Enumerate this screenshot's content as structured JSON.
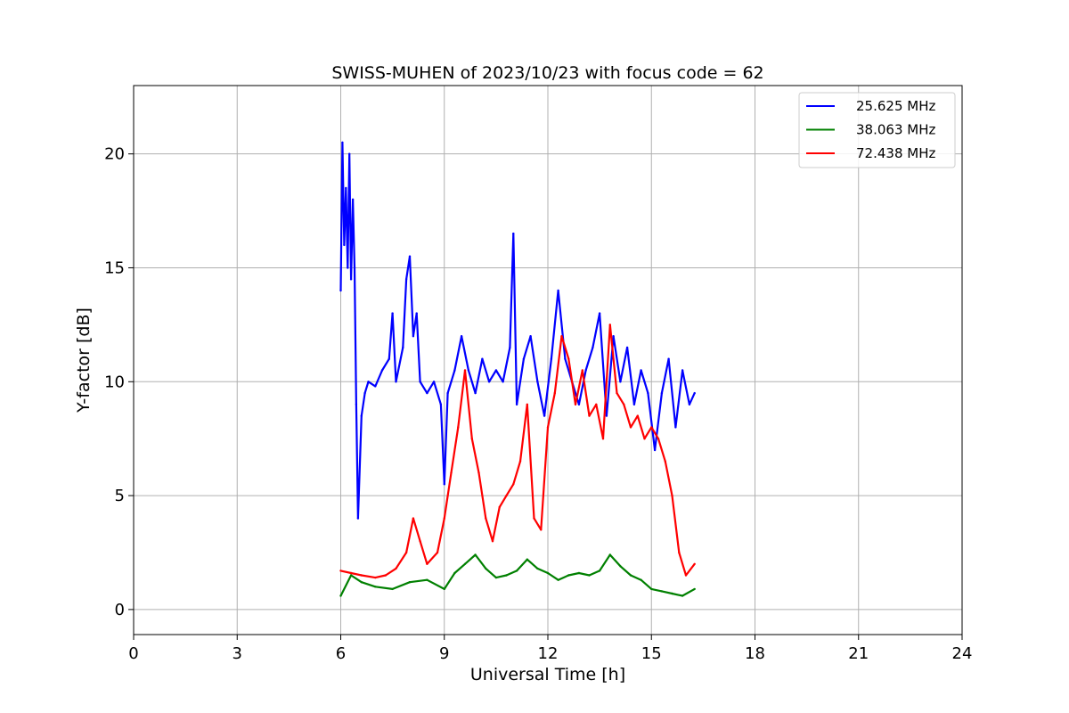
{
  "chart_data": {
    "type": "line",
    "title": "SWISS-MUHEN of 2023/10/23 with focus code = 62",
    "xlabel": "Universal Time [h]",
    "ylabel": "Y-factor [dB]",
    "xlim": [
      0,
      24
    ],
    "ylim": [
      -1.1,
      23.0
    ],
    "xticks": [
      0,
      3,
      6,
      9,
      12,
      15,
      18,
      21,
      24
    ],
    "yticks": [
      0,
      5,
      10,
      15,
      20
    ],
    "grid": true,
    "legend_position": "top-right",
    "series": [
      {
        "name": "25.625 MHz",
        "color": "#0000ff",
        "x": [
          6.0,
          6.05,
          6.1,
          6.15,
          6.2,
          6.25,
          6.3,
          6.35,
          6.4,
          6.45,
          6.5,
          6.6,
          6.7,
          6.8,
          7.0,
          7.2,
          7.4,
          7.5,
          7.6,
          7.8,
          7.9,
          8.0,
          8.1,
          8.2,
          8.3,
          8.5,
          8.7,
          8.9,
          9.0,
          9.1,
          9.3,
          9.5,
          9.7,
          9.9,
          10.1,
          10.3,
          10.5,
          10.7,
          10.9,
          11.0,
          11.1,
          11.3,
          11.5,
          11.7,
          11.9,
          12.1,
          12.3,
          12.5,
          12.7,
          12.9,
          13.1,
          13.3,
          13.5,
          13.7,
          13.9,
          14.1,
          14.3,
          14.5,
          14.7,
          14.9,
          15.1,
          15.3,
          15.5,
          15.7,
          15.9,
          16.1,
          16.25
        ],
        "y": [
          14.0,
          20.5,
          16.0,
          18.5,
          15.0,
          20.0,
          14.5,
          18.0,
          15.0,
          9.0,
          4.0,
          8.5,
          9.5,
          10.0,
          9.8,
          10.5,
          11.0,
          13.0,
          10.0,
          11.5,
          14.5,
          15.5,
          12.0,
          13.0,
          10.0,
          9.5,
          10.0,
          9.0,
          5.5,
          9.5,
          10.5,
          12.0,
          10.5,
          9.5,
          11.0,
          10.0,
          10.5,
          10.0,
          11.5,
          16.5,
          9.0,
          11.0,
          12.0,
          10.0,
          8.5,
          11.0,
          14.0,
          11.0,
          10.0,
          9.0,
          10.5,
          11.5,
          13.0,
          8.5,
          12.0,
          10.0,
          11.5,
          9.0,
          10.5,
          9.5,
          7.0,
          9.5,
          11.0,
          8.0,
          10.5,
          9.0,
          9.5
        ]
      },
      {
        "name": "38.063 MHz",
        "color": "#008000",
        "x": [
          6.0,
          6.3,
          6.6,
          7.0,
          7.5,
          8.0,
          8.5,
          9.0,
          9.3,
          9.6,
          9.9,
          10.2,
          10.5,
          10.8,
          11.1,
          11.4,
          11.7,
          12.0,
          12.3,
          12.6,
          12.9,
          13.2,
          13.5,
          13.8,
          14.1,
          14.4,
          14.7,
          15.0,
          15.3,
          15.6,
          15.9,
          16.25
        ],
        "y": [
          0.6,
          1.5,
          1.2,
          1.0,
          0.9,
          1.2,
          1.3,
          0.9,
          1.6,
          2.0,
          2.4,
          1.8,
          1.4,
          1.5,
          1.7,
          2.2,
          1.8,
          1.6,
          1.3,
          1.5,
          1.6,
          1.5,
          1.7,
          2.4,
          1.9,
          1.5,
          1.3,
          0.9,
          0.8,
          0.7,
          0.6,
          0.9
        ]
      },
      {
        "name": "72.438 MHz",
        "color": "#ff0000",
        "x": [
          6.0,
          6.3,
          6.6,
          7.0,
          7.3,
          7.6,
          7.9,
          8.1,
          8.3,
          8.5,
          8.8,
          9.0,
          9.2,
          9.4,
          9.6,
          9.8,
          10.0,
          10.2,
          10.4,
          10.6,
          10.8,
          11.0,
          11.2,
          11.4,
          11.6,
          11.8,
          12.0,
          12.2,
          12.4,
          12.6,
          12.8,
          13.0,
          13.2,
          13.4,
          13.6,
          13.8,
          14.0,
          14.2,
          14.4,
          14.6,
          14.8,
          15.0,
          15.2,
          15.4,
          15.6,
          15.8,
          16.0,
          16.25
        ],
        "y": [
          1.7,
          1.6,
          1.5,
          1.4,
          1.5,
          1.8,
          2.5,
          4.0,
          3.0,
          2.0,
          2.5,
          4.0,
          6.0,
          8.0,
          10.5,
          7.5,
          6.0,
          4.0,
          3.0,
          4.5,
          5.0,
          5.5,
          6.5,
          9.0,
          4.0,
          3.5,
          8.0,
          9.5,
          12.0,
          11.0,
          9.0,
          10.5,
          8.5,
          9.0,
          7.5,
          12.5,
          9.5,
          9.0,
          8.0,
          8.5,
          7.5,
          8.0,
          7.5,
          6.5,
          5.0,
          2.5,
          1.5,
          2.0
        ]
      }
    ]
  }
}
